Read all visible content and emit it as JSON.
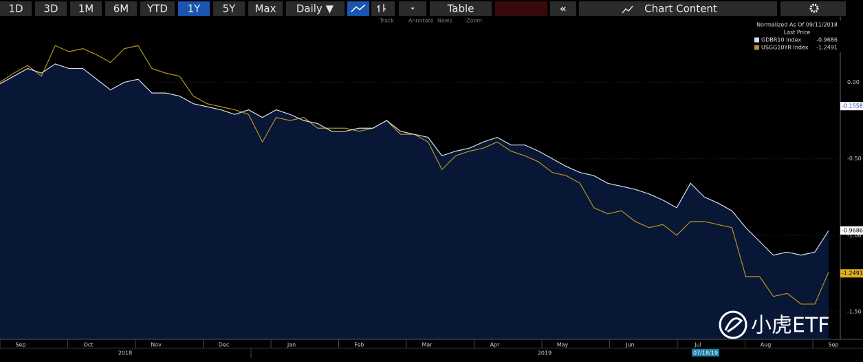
{
  "toolbar": {
    "ranges": [
      "1D",
      "3D",
      "1M",
      "6M",
      "YTD",
      "1Y",
      "5Y",
      "Max"
    ],
    "active": "1Y",
    "frequency": "Daily ▼",
    "table": "Table",
    "chart_content": "Chart Content",
    "subtools": [
      "Track",
      "Annotate",
      "News",
      "Zoom"
    ]
  },
  "chart_data": {
    "type": "line",
    "legend": {
      "title": "Normalized As Of 09/11/2018",
      "subtitle": "Last Price"
    },
    "series": [
      {
        "name": "GDBR10 Index",
        "color": "#d8dce8",
        "last": -0.9686,
        "values": [
          -0.01,
          0.04,
          0.09,
          0.06,
          0.12,
          0.09,
          0.09,
          0.02,
          -0.05,
          0.0,
          0.02,
          -0.07,
          -0.07,
          -0.09,
          -0.14,
          -0.16,
          -0.18,
          -0.21,
          -0.18,
          -0.23,
          -0.18,
          -0.21,
          -0.25,
          -0.27,
          -0.32,
          -0.32,
          -0.3,
          -0.3,
          -0.25,
          -0.32,
          -0.34,
          -0.36,
          -0.48,
          -0.45,
          -0.43,
          -0.39,
          -0.36,
          -0.41,
          -0.41,
          -0.45,
          -0.5,
          -0.55,
          -0.59,
          -0.61,
          -0.66,
          -0.68,
          -0.7,
          -0.73,
          -0.77,
          -0.82,
          -0.66,
          -0.75,
          -0.79,
          -0.84,
          -0.95,
          -1.04,
          -1.13,
          -1.11,
          -1.13,
          -1.11,
          -0.97
        ]
      },
      {
        "name": "USGG10YR Index",
        "color": "#b8941c",
        "last": -1.2491,
        "values": [
          0.0,
          0.06,
          0.11,
          0.04,
          0.24,
          0.2,
          0.22,
          0.18,
          0.13,
          0.22,
          0.24,
          0.09,
          0.06,
          0.04,
          -0.09,
          -0.14,
          -0.16,
          -0.18,
          -0.21,
          -0.39,
          -0.23,
          -0.25,
          -0.23,
          -0.3,
          -0.3,
          -0.3,
          -0.32,
          -0.3,
          -0.25,
          -0.34,
          -0.34,
          -0.39,
          -0.57,
          -0.48,
          -0.45,
          -0.43,
          -0.39,
          -0.45,
          -0.48,
          -0.52,
          -0.59,
          -0.61,
          -0.66,
          -0.82,
          -0.86,
          -0.84,
          -0.91,
          -0.95,
          -0.93,
          -1.0,
          -0.91,
          -0.91,
          -0.93,
          -0.95,
          -1.27,
          -1.27,
          -1.4,
          -1.38,
          -1.45,
          -1.45,
          -1.24
        ]
      }
    ],
    "marker_value": -0.1558,
    "ylim": [
      -1.68,
      0.43
    ],
    "yticks": [
      {
        "value": 0,
        "label": "0.00"
      },
      {
        "value": -0.5,
        "label": "-0.50"
      },
      {
        "value": -1,
        "label": "-1.00"
      },
      {
        "value": -1.5,
        "label": "-1.50"
      }
    ],
    "months": [
      "Sep",
      "Oct",
      "Nov",
      "Dec",
      "Jan",
      "Feb",
      "Mar",
      "Apr",
      "May",
      "Jun",
      "Jul",
      "Aug",
      "Sep"
    ],
    "years": [
      "2018",
      "2019"
    ],
    "cursor_date": "07/18/19"
  },
  "watermark": "小虎ETF"
}
